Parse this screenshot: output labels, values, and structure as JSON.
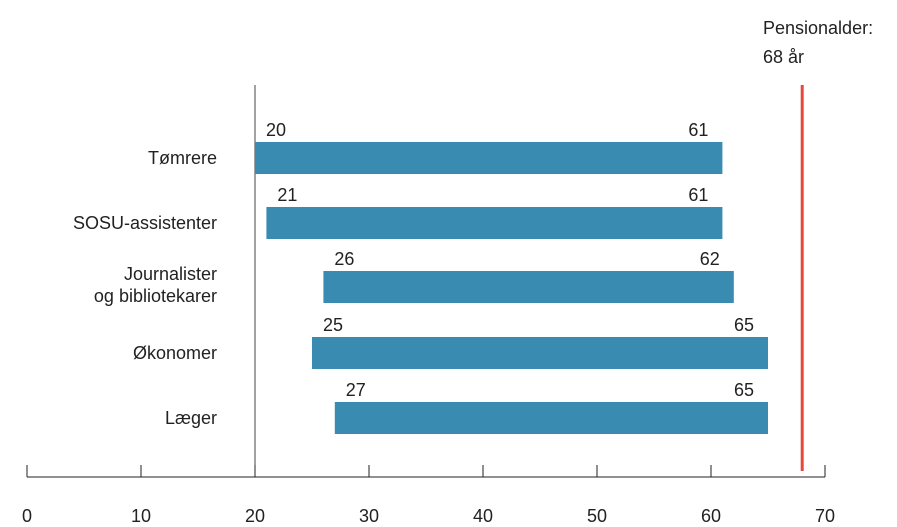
{
  "chart_data": {
    "type": "bar",
    "orientation": "horizontal-range",
    "categories": [
      "Tømrere",
      "SOSU-assistenter",
      "Journalister og bibliotekarer",
      "Økonomer",
      "Læger"
    ],
    "category_lines": [
      [
        "Tømrere"
      ],
      [
        "SOSU-assistenter"
      ],
      [
        "Journalister",
        "og bibliotekarer"
      ],
      [
        "Økonomer"
      ],
      [
        "Læger"
      ]
    ],
    "start": [
      20,
      21,
      26,
      25,
      27
    ],
    "end": [
      61,
      61,
      62,
      65,
      65
    ],
    "xlim": [
      0,
      70
    ],
    "xticks": [
      0,
      10,
      20,
      30,
      40,
      50,
      60,
      70
    ],
    "reference_line": {
      "value": 68,
      "label_line1": "Pensionalder:",
      "label_line2": "68 år",
      "color": "#e8473c"
    },
    "bar_color": "#3a8bb1",
    "grid": false,
    "legend": "none"
  }
}
